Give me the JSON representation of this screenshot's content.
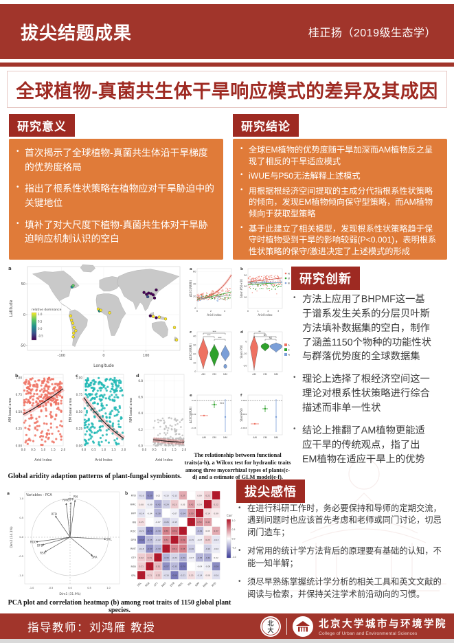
{
  "header": {
    "program_label": "拔尖结题成果",
    "student": "桂正扬（2019级生态学）"
  },
  "title": "全球植物-真菌共生体干旱响应模式的差异及其成因",
  "sections": {
    "significance": {
      "heading": "研究意义",
      "bullets": [
        "首次揭示了全球植物-真菌共生体沿干旱梯度的优势度格局",
        "指出了根系性状策略在植物应对干旱胁迫中的关键地位",
        "填补了对大尺度下植物-真菌共生体对干旱胁迫响应机制认识的空白"
      ]
    },
    "conclusions": {
      "heading": "研究结论",
      "bullets": [
        "全球EM植物的优势度随干旱加深而AM植物反之呈现了相反的干旱适应模式",
        "iWUE与P50无法解释上述模式",
        "用根据根经济空间提取的主成分代指根系性状策略的倾向，发现EM植物倾向保守型策略，而AM植物倾向于获取型策略",
        "基于此建立了相关模型，发现根系性状策略趋于保守时植物受到干旱的影响较弱(P<0.001)，表明根系性状策略的保守/激进决定了上述模式的形成"
      ]
    },
    "innovation": {
      "heading": "研究创新",
      "bullets": [
        "方法上应用了BHPMF这一基于谱系发生关系的分层贝叶斯方法填补数据集的空白，制作了涵盖1150个物种的功能性状与群落优势度的全球数据集",
        "理论上选择了根经济空间这一理论对根系性状策略进行综合描述而非单一性状",
        "结论上推翻了AM植物更能适应干旱的传统观点，指了出EM植物在适应干旱上的优势"
      ]
    },
    "reflections": {
      "heading": "拔尖感悟",
      "bullets": [
        "在进行科研工作时，务必要保持和导师的定期交流，遇到问题时也应该首先考虑和老师或同门讨论，切忌闭门造车；",
        "对常用的统计学方法背后的原理要有基础的认知，不能一知半解；",
        "须尽早熟练掌握统计学分析的相关工具和英文文献的阅读与检索，并保持关注学术前沿动向的习惯。"
      ]
    }
  },
  "captions": {
    "map": "Global aridity adaption patterns of plant-fungal symbionts.",
    "traits": "The relationship between functional traits(a-b), a Wilcox test for hydraulic traits among three mycorrhizal types of plants(c-d) and a estimate of GLM model(e-f).",
    "pca": "PCA plot and correlation heatmap (b) among root traits of 1150 global plant species."
  },
  "footer": {
    "advisor": "指导教师：刘鸿雁 教授",
    "school_cn": "北京大学城市与环境学院",
    "school_en": "College of Urban and Environmental Sciences"
  },
  "colors": {
    "brand_red": "#A1352B",
    "dark_red": "#9E2A22",
    "orange": "#E07B39",
    "am_red": "#EE7161",
    "em_teal": "#1FB7B4",
    "em_green": "#2FA12C",
    "nm_gray": "#BFBFBF",
    "nm_blue": "#7B9FD8",
    "heat_red": "#B2182B",
    "heat_blue": "#3A3A98"
  },
  "chart_data": [
    {
      "id": "map",
      "type": "scatter",
      "panel_label": "a",
      "xlabel": "Longitude",
      "ylabel": "Latitude",
      "xticks": [
        -100,
        0,
        100
      ],
      "yticks": [
        -50,
        0,
        50
      ],
      "legend": {
        "title": "relative dominance",
        "ticks": [
          "1.0",
          "0.5",
          "0.0",
          "-0.5"
        ],
        "colors": [
          "#FDE725",
          "#5EC962",
          "#21918C",
          "#3B528B",
          "#440154"
        ]
      },
      "points": [
        {
          "lon": -75,
          "lat": 45,
          "c": "#21918C"
        },
        {
          "lon": -72,
          "lat": 47,
          "c": "#5EC962"
        },
        {
          "lon": -13,
          "lat": 9,
          "c": "#FDE725"
        },
        {
          "lon": -10,
          "lat": 6,
          "c": "#21918C"
        },
        {
          "lon": -7,
          "lat": 7,
          "c": "#FDE725"
        },
        {
          "lon": 14,
          "lat": 3,
          "c": "#FDE725"
        },
        {
          "lon": -78,
          "lat": -2,
          "c": "#FDE725"
        },
        {
          "lon": -76,
          "lat": -9,
          "c": "#FDE725"
        },
        {
          "lon": -73,
          "lat": -14,
          "c": "#FDE725"
        },
        {
          "lon": -70,
          "lat": -21,
          "c": "#FDE725"
        },
        {
          "lon": -71,
          "lat": -30,
          "c": "#FDE725"
        },
        {
          "lon": -72,
          "lat": -36,
          "c": "#FDE725"
        },
        {
          "lon": -66,
          "lat": -26,
          "c": "#FDE725"
        },
        {
          "lon": 95,
          "lat": 36,
          "c": "#440154"
        },
        {
          "lon": 101,
          "lat": 33,
          "c": "#440154"
        },
        {
          "lon": 106,
          "lat": 35,
          "c": "#440154"
        },
        {
          "lon": 112,
          "lat": 34,
          "c": "#440154"
        },
        {
          "lon": 117,
          "lat": 32,
          "c": "#440154"
        },
        {
          "lon": 104,
          "lat": 29,
          "c": "#3B528B"
        },
        {
          "lon": 120,
          "lat": 27,
          "c": "#440154"
        },
        {
          "lon": 124,
          "lat": 40,
          "c": "#440154"
        },
        {
          "lon": 110,
          "lat": -2,
          "c": "#440154"
        },
        {
          "lon": 117,
          "lat": -3,
          "c": "#FDE725"
        },
        {
          "lon": 124,
          "lat": -5,
          "c": "#440154"
        },
        {
          "lon": 131,
          "lat": -4,
          "c": "#FDE725"
        },
        {
          "lon": 146,
          "lat": -7,
          "c": "#FDE725"
        },
        {
          "lon": 167,
          "lat": -21,
          "c": "#FDE725"
        },
        {
          "lon": 172,
          "lat": -41,
          "c": "#FDE725"
        }
      ]
    },
    {
      "id": "basal",
      "type": "scatter",
      "xlabel": "Arid Index",
      "xticks": [
        0.0,
        0.5,
        1.0,
        1.5,
        2.0
      ],
      "panels": [
        {
          "label": "b",
          "ylabel": "AM basal area",
          "color": "#EE7161",
          "ymax": 1.05,
          "fmt": 2,
          "yticks": [
            0.0,
            0.25,
            0.5,
            0.75,
            1.0
          ],
          "n": 280,
          "seed": 11,
          "trend": {
            "x": [
              0,
              2
            ],
            "y": [
              0.46,
              0.84
            ],
            "ymid": 0.62
          }
        },
        {
          "label": "c",
          "ylabel": "EM basal area",
          "color": "#1FB7B4",
          "ymax": 1.05,
          "fmt": 2,
          "yticks": [
            0.0,
            0.25,
            0.5,
            0.75,
            1.0
          ],
          "n": 280,
          "seed": 22,
          "trend": {
            "x": [
              0,
              2
            ],
            "y": [
              0.71,
              0.11
            ],
            "ymid": 0.3
          }
        },
        {
          "label": "d",
          "ylabel": "NM basal area",
          "color": "#BFBFBF",
          "ymax": 0.88,
          "fmt": 1,
          "yticks": [
            0.0,
            0.2,
            0.4,
            0.6,
            0.8
          ],
          "n": 200,
          "seed": 33,
          "trend": {
            "x": [
              0.45,
              2
            ],
            "y": [
              0.075,
              0.045
            ],
            "ymid": 0.05
          }
        }
      ]
    },
    {
      "id": "traits",
      "type": "mixed",
      "groups": [
        {
          "name": "AM",
          "color": "#EE7161"
        },
        {
          "name": "EM",
          "color": "#2FA12C"
        },
        {
          "name": "NM",
          "color": "#7B9FD8"
        }
      ],
      "panels": [
        {
          "label": "a",
          "kind": "scatter",
          "ylabel": "Δ13C(iWUE)",
          "xlabel": "Arid Index",
          "xticks": [
            0,
            2,
            4
          ],
          "yticks": [
            0,
            20,
            40,
            60
          ]
        },
        {
          "label": "b",
          "kind": "scatter",
          "ylabel": "Stem P50+50",
          "xlabel": "Arid Index",
          "xticks": [
            0,
            1,
            2,
            3
          ],
          "yticks": [
            10,
            20,
            30
          ],
          "legend": true
        },
        {
          "label": "c",
          "kind": "violin",
          "ylabel": "Δ13C(iWUE)",
          "categories": [
            "AM",
            "EM",
            "NM"
          ],
          "yticks": [
            0,
            10,
            20,
            30,
            40
          ],
          "sig": [
            "***",
            "***",
            "***"
          ]
        },
        {
          "label": "d",
          "kind": "violin",
          "ylabel": "Stem P50",
          "categories": [
            "AM",
            "EM",
            "NM"
          ],
          "yticks": [
            0,
            -10,
            -20
          ],
          "sig": [
            "**",
            "NS",
            "NS"
          ],
          "legend": true
        },
        {
          "label": "e",
          "kind": "estimate",
          "ylabel": "Δ13C(iWUE)",
          "categories": [
            "AM",
            "EM",
            "NM"
          ],
          "yticks": [
            "0.00",
            "-0.02",
            "-0.04"
          ],
          "sig": "N.S"
        },
        {
          "label": "f",
          "kind": "estimate",
          "ylabel": "Stem P50",
          "categories": [
            "AM",
            "EM",
            "NM"
          ],
          "yticks": [
            "0.000",
            "-0.002",
            "-0.004"
          ],
          "sig": ""
        }
      ]
    },
    {
      "id": "pca",
      "type": "scatter",
      "panel_label": "a",
      "title": "Variables - PCA",
      "xlabel": "Dim1 (31.9%)",
      "ylabel": "Dim2 (24.1%)",
      "xticks": [
        -1.0,
        -0.5,
        0.0,
        0.5,
        1.0
      ],
      "arrows": [
        {
          "label": "RN",
          "x": 0.13,
          "y": 0.96
        },
        {
          "label": "RPP",
          "x": 0.02,
          "y": 0.9
        },
        {
          "label": "RMC",
          "x": -0.1,
          "y": 0.88
        },
        {
          "label": "RTD",
          "x": -0.38,
          "y": 0.55
        },
        {
          "label": "RDC",
          "x": -0.88,
          "y": -0.12
        },
        {
          "label": "DFB",
          "x": -0.72,
          "y": -0.2
        },
        {
          "label": "RSR",
          "x": -0.65,
          "y": -0.38
        },
        {
          "label": "SRL",
          "x": 0.93,
          "y": -0.05
        },
        {
          "label": "SRA",
          "x": 0.58,
          "y": -0.48
        }
      ]
    },
    {
      "id": "corr_heatmap",
      "type": "heatmap",
      "panel_label": "b",
      "legend_title": "Corr",
      "legend_ticks": [
        "1.0",
        "0.5",
        "0.0",
        "-0.5",
        "-1.0"
      ],
      "row_labels": [
        "RTD",
        "RMC",
        "RPP",
        "RN",
        "RDC",
        "DFB",
        "RMT",
        "STY",
        "RSR",
        "SRL"
      ],
      "col_labels": [
        "SRL",
        "RSR",
        "STY",
        "RMT",
        "DFB",
        "RDC",
        "RN",
        "RPP",
        "RMC",
        "RTD"
      ],
      "values": [
        [
          -0.16,
          -0.59,
          0.02,
          -0.1,
          -0.13,
          0.37,
          null,
          0.09,
          0.22,
          1
        ],
        [
          0.08,
          -0.09,
          -0.42,
          -0.24,
          0.23,
          0.05,
          0.42,
          0.14,
          1,
          0.22
        ],
        [
          -0.14,
          -0.04,
          -0.38,
          null,
          -0.07,
          -0.34,
          0.5,
          1,
          0.14,
          0.09
        ],
        [
          0.15,
          null,
          -0.07,
          -0.26,
          -0.15,
          null,
          1,
          0.5,
          0.42,
          null
        ],
        [
          -0.21,
          -0.7,
          -0.39,
          0.55,
          0.59,
          1,
          null,
          -0.34,
          0.05,
          0.37
        ],
        [
          -0.68,
          -0.35,
          -0.22,
          0.51,
          1,
          0.59,
          -0.15,
          -0.07,
          0.23,
          -0.13
        ],
        [
          -0.18,
          -0.57,
          -0.39,
          1,
          0.51,
          0.55,
          -0.26,
          null,
          -0.24,
          -0.1
        ],
        [
          0.22,
          0.31,
          1,
          -0.39,
          -0.22,
          -0.39,
          -0.07,
          -0.38,
          -0.42,
          0.02
        ],
        [
          0.21,
          1,
          0.31,
          -0.57,
          -0.35,
          -0.7,
          null,
          -0.04,
          -0.09,
          -0.59
        ],
        [
          1,
          0.21,
          0.22,
          -0.18,
          -0.68,
          -0.21,
          0.15,
          -0.14,
          0.08,
          -0.16
        ]
      ]
    }
  ]
}
